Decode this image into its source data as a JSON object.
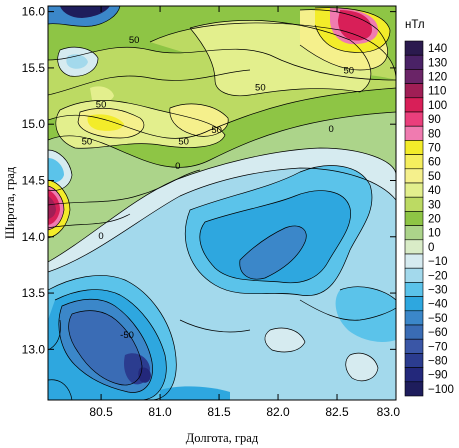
{
  "chart_data": {
    "type": "contour",
    "xlabel": "Долгота, град",
    "ylabel": "Широта, град",
    "xlim": [
      80.05,
      83.0
    ],
    "ylim": [
      12.55,
      16.05
    ],
    "xticks": [
      "80.5",
      "81.0",
      "81.5",
      "82.0",
      "82.5",
      "83.0"
    ],
    "xtick_values": [
      80.5,
      81.0,
      81.5,
      82.0,
      82.5,
      83.0
    ],
    "yticks": [
      "13.0",
      "13.5",
      "14.0",
      "14.5",
      "15.0",
      "15.5",
      "16.0"
    ],
    "ytick_values": [
      13.0,
      13.5,
      14.0,
      14.5,
      15.0,
      15.5,
      16.0
    ],
    "legend": {
      "unit": "нТл",
      "position": "right",
      "levels": [
        "140",
        "130",
        "120",
        "110",
        "100",
        "90",
        "80",
        "70",
        "60",
        "50",
        "40",
        "30",
        "20",
        "10",
        "0",
        "−10",
        "−20",
        "−30",
        "−40",
        "−50",
        "−60",
        "−70",
        "−80",
        "−90",
        "−100"
      ],
      "colors": [
        "#2b1a4e",
        "#4a2266",
        "#6a2467",
        "#a01e55",
        "#d81f58",
        "#ea3f7c",
        "#f07bb0",
        "#f3ec2a",
        "#f5ee5e",
        "#f5f08c",
        "#e3ef8d",
        "#bcda63",
        "#8ec545",
        "#acd48a",
        "#d9ecc7",
        "#d6ebf0",
        "#a3d9ec",
        "#5bc3ea",
        "#2ea7df",
        "#3b87c9",
        "#3a6cb5",
        "#3a56a6",
        "#2b3c8f",
        "#23287b",
        "#1e1d5c"
      ]
    },
    "contour_labels": [
      {
        "text": "50",
        "lon": 82.6,
        "lat": 15.45
      },
      {
        "text": "50",
        "lon": 81.85,
        "lat": 15.3
      },
      {
        "text": "50",
        "lon": 81.48,
        "lat": 14.92
      },
      {
        "text": "0",
        "lon": 82.45,
        "lat": 14.93
      },
      {
        "text": "50",
        "lon": 81.2,
        "lat": 14.82
      },
      {
        "text": "0",
        "lon": 81.15,
        "lat": 14.6
      },
      {
        "text": "0",
        "lon": 80.5,
        "lat": 13.98
      },
      {
        "text": "50",
        "lon": 80.78,
        "lat": 15.72
      },
      {
        "text": "50",
        "lon": 80.5,
        "lat": 15.15
      },
      {
        "text": "50",
        "lon": 80.38,
        "lat": 14.82
      },
      {
        "text": "-50",
        "lon": 80.72,
        "lat": 13.1
      }
    ]
  }
}
